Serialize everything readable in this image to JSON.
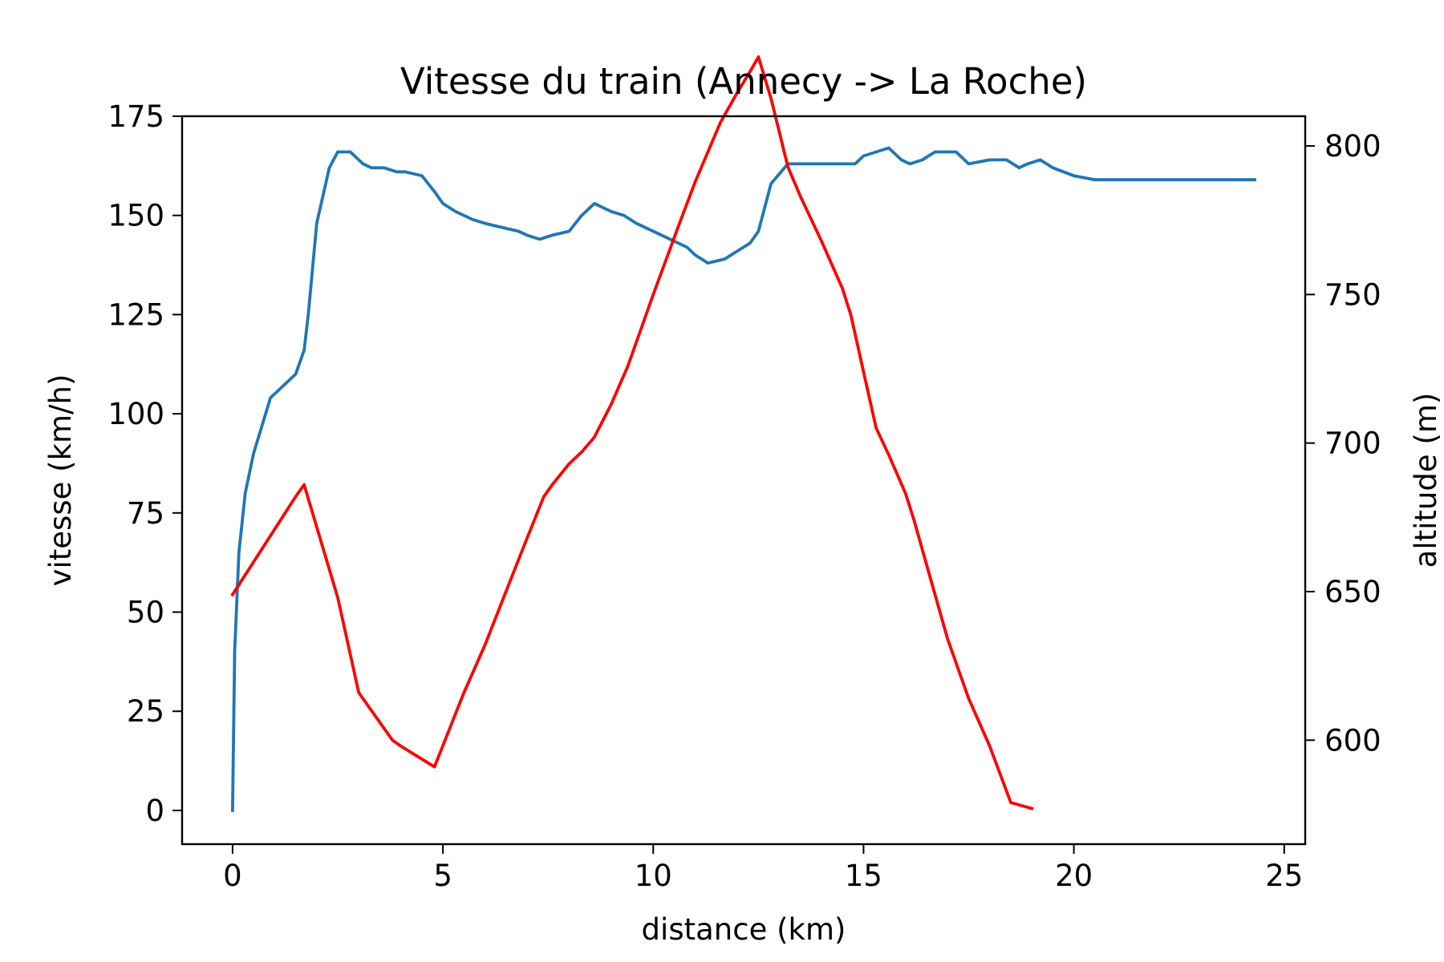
{
  "chart_data": {
    "type": "line",
    "title": "Vitesse du train (Annecy -> La Roche)",
    "xlabel": "distance (km)",
    "ylabel": "vitesse (km/h)",
    "y2label": "altitude (m)",
    "xlim": [
      -1.2,
      25.5
    ],
    "ylim": [
      -8.5,
      175
    ],
    "y2lim": [
      565,
      810
    ],
    "xticks": [
      0,
      5,
      10,
      15,
      20,
      25
    ],
    "yticks": [
      0,
      25,
      50,
      75,
      100,
      125,
      150,
      175
    ],
    "y2ticks": [
      600,
      650,
      700,
      750,
      800
    ],
    "grid": false,
    "series": [
      {
        "axis": "left",
        "color": "#1f77b4",
        "x": [
          0,
          0.05,
          0.15,
          0.3,
          0.5,
          0.7,
          0.9,
          1.2,
          1.5,
          1.7,
          1.8,
          2.0,
          2.3,
          2.5,
          2.8,
          3.1,
          3.3,
          3.6,
          3.9,
          4.1,
          4.5,
          4.8,
          5.0,
          5.3,
          5.7,
          6.0,
          6.4,
          6.8,
          7.0,
          7.3,
          7.6,
          8.0,
          8.3,
          8.6,
          9.0,
          9.3,
          9.6,
          10.0,
          10.4,
          10.8,
          11.0,
          11.3,
          11.7,
          12.0,
          12.3,
          12.5,
          12.8,
          13.2,
          13.6,
          14.0,
          14.3,
          14.8,
          15.0,
          15.3,
          15.6,
          15.9,
          16.1,
          16.4,
          16.7,
          17.0,
          17.2,
          17.5,
          18.0,
          18.4,
          18.7,
          18.9,
          19.2,
          19.5,
          20.0,
          20.5,
          21.0,
          21.5,
          22.0,
          22.5,
          23.0,
          23.5,
          24.0,
          24.3
        ],
        "values": [
          0,
          40,
          65,
          80,
          90,
          97,
          104,
          107,
          110,
          116,
          125,
          148,
          162,
          166,
          166,
          163,
          162,
          162,
          161,
          161,
          160,
          156,
          153,
          151,
          149,
          148,
          147,
          146,
          145,
          144,
          145,
          146,
          150,
          153,
          151,
          150,
          148,
          146,
          144,
          142,
          140,
          138,
          139,
          141,
          143,
          146,
          158,
          163,
          163,
          163,
          163,
          163,
          165,
          166,
          167,
          164,
          163,
          164,
          166,
          166,
          166,
          163,
          164,
          164,
          162,
          163,
          164,
          162,
          160,
          159,
          159,
          159,
          159,
          159,
          159,
          159,
          159,
          159
        ]
      },
      {
        "axis": "right",
        "color": "#ff0000",
        "x": [
          0,
          1.5,
          1.7,
          2.5,
          3.0,
          3.2,
          3.5,
          3.8,
          4.0,
          4.8,
          5.5,
          6.0,
          6.5,
          7.0,
          7.4,
          7.6,
          8.0,
          8.3,
          8.6,
          9.0,
          9.4,
          10.0,
          10.6,
          11.0,
          11.6,
          12.0,
          12.3,
          12.5,
          12.8,
          13.2,
          13.5,
          14.0,
          14.5,
          14.7,
          15.0,
          15.3,
          15.6,
          16.0,
          16.2,
          16.6,
          17.0,
          17.5,
          18.0,
          18.5,
          19.0
        ],
        "values": [
          649,
          682,
          686,
          648,
          616,
          612,
          606,
          600,
          598,
          591,
          616,
          632,
          650,
          668,
          682,
          686,
          693,
          697,
          702,
          713,
          726,
          750,
          773,
          788,
          808,
          818,
          825,
          830,
          816,
          793,
          783,
          768,
          752,
          743,
          724,
          705,
          696,
          683,
          674,
          654,
          634,
          614,
          598,
          579,
          577
        ]
      }
    ]
  }
}
